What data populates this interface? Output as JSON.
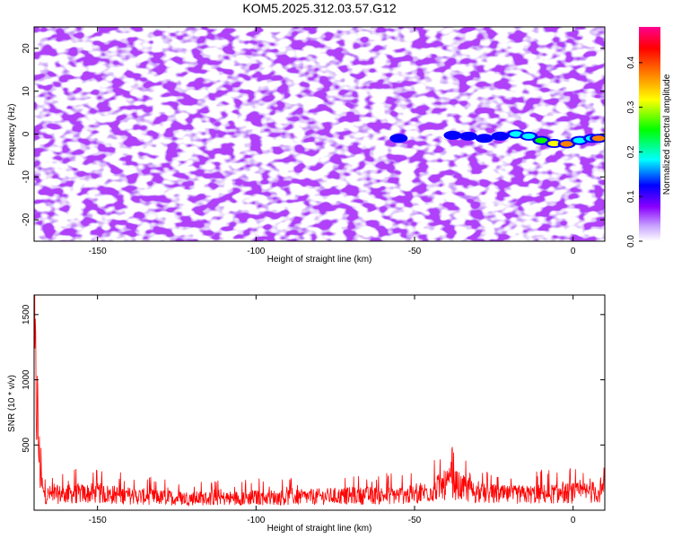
{
  "title": "KOM5.2025.312.03.57.G12",
  "chart_data": [
    {
      "type": "heatmap",
      "title": "KOM5.2025.312.03.57.G12",
      "xlabel": "Height of straight line (km)",
      "ylabel": "Frequency (Hz)",
      "xlim": [
        -170,
        10
      ],
      "ylim": [
        -25,
        25
      ],
      "xticks": [
        -150,
        -100,
        -50,
        0
      ],
      "yticks": [
        -20,
        -10,
        0,
        10,
        20
      ],
      "colorbar": {
        "label": "Normalized spectral amplitude",
        "range": [
          0,
          0.48
        ],
        "ticks": [
          "0.0",
          "0.1",
          "0.2",
          "0.3",
          "0.4"
        ],
        "colors": [
          "#ffffff",
          "#8a00ff",
          "#0000ff",
          "#00ffff",
          "#00ff00",
          "#ffff00",
          "#ff8000",
          "#ff0000",
          "#ff00a0"
        ]
      },
      "signal_track": {
        "height_km": [
          -55,
          -38,
          -33,
          -28,
          -23,
          -18,
          -14,
          -10,
          -6,
          -2,
          2,
          6,
          8
        ],
        "frequency_hz": [
          -1,
          -0.3,
          -0.5,
          -1,
          -0.5,
          0,
          -0.5,
          -1.5,
          -2.2,
          -2.3,
          -1.5,
          -1,
          -1
        ],
        "amplitude": [
          0.12,
          0.12,
          0.13,
          0.14,
          0.16,
          0.18,
          0.2,
          0.28,
          0.35,
          0.4,
          0.22,
          0.2,
          0.4
        ]
      },
      "grid": false
    },
    {
      "type": "line",
      "xlabel": "Height of straight line (km)",
      "ylabel": "SNR (10 * v/v)",
      "xlim": [
        -170,
        10
      ],
      "ylim": [
        0,
        1650
      ],
      "xticks": [
        -150,
        -100,
        -50,
        0
      ],
      "yticks": [
        500,
        1000,
        1500
      ],
      "line_color": "#ff0000",
      "envelope": {
        "x": [
          -170,
          -169.5,
          -169,
          -168.5,
          -168,
          -167,
          -160,
          -150,
          -140,
          -130,
          -120,
          -110,
          -100,
          -90,
          -80,
          -70,
          -60,
          -50,
          -45,
          -40,
          -38,
          -35,
          -30,
          -20,
          -10,
          0,
          5,
          10
        ],
        "y": [
          1650,
          1500,
          1200,
          700,
          400,
          180,
          190,
          200,
          170,
          150,
          140,
          140,
          150,
          150,
          160,
          170,
          175,
          180,
          230,
          300,
          320,
          260,
          200,
          180,
          190,
          200,
          210,
          220
        ]
      },
      "grid": false
    }
  ]
}
